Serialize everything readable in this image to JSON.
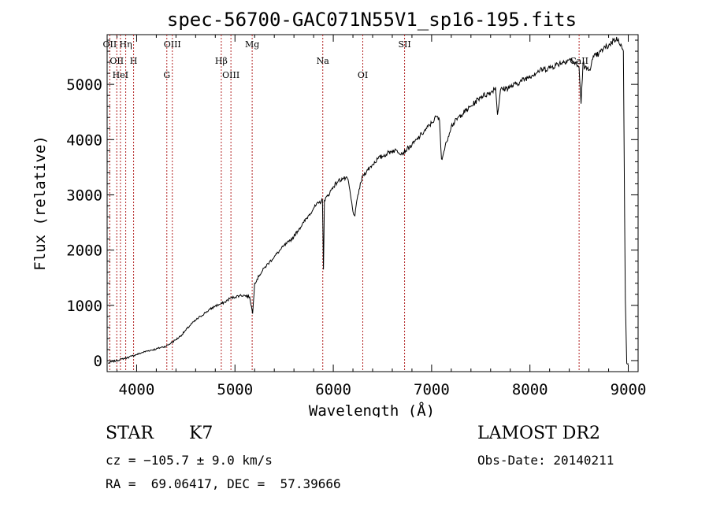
{
  "chart_data": {
    "type": "line",
    "title": "spec-56700-GAC071N55V1_sp16-195.fits",
    "xlabel": "Wavelength (Å)",
    "ylabel": "Flux (relative)",
    "xlim": [
      3700,
      9100
    ],
    "ylim": [
      -200,
      5900
    ],
    "xticks": [
      4000,
      5000,
      6000,
      7000,
      8000,
      9000
    ],
    "xtick_labels": [
      "4000",
      "5000",
      "6000",
      "7000",
      "8000",
      "9000"
    ],
    "yticks": [
      0,
      1000,
      2000,
      3000,
      4000,
      5000
    ],
    "ytick_labels": [
      "0",
      "1000",
      "2000",
      "3000",
      "4000",
      "5000"
    ],
    "line_color": "#000000",
    "marker_color": "#b22222",
    "series": [
      {
        "x": [
          3710,
          3750,
          3800,
          3850,
          3900,
          3950,
          4000,
          4050,
          4100,
          4150,
          4200,
          4250,
          4300,
          4350,
          4400,
          4450,
          4500,
          4550,
          4600,
          4650,
          4700,
          4750,
          4800,
          4850,
          4900,
          4950,
          5000,
          5050,
          5100,
          5150,
          5180,
          5200,
          5250,
          5300,
          5350,
          5400,
          5450,
          5500,
          5550,
          5600,
          5650,
          5700,
          5750,
          5800,
          5850,
          5890,
          5900,
          5910,
          5950,
          6000,
          6050,
          6100,
          6150,
          6200,
          6220,
          6250,
          6300,
          6350,
          6400,
          6450,
          6500,
          6550,
          6600,
          6650,
          6700,
          6750,
          6800,
          6850,
          6900,
          6950,
          7000,
          7050,
          7080,
          7100,
          7120,
          7150,
          7200,
          7300,
          7400,
          7500,
          7600,
          7650,
          7670,
          7700,
          7800,
          7900,
          8000,
          8100,
          8200,
          8300,
          8400,
          8450,
          8500,
          8520,
          8540,
          8560,
          8600,
          8650,
          8700,
          8750,
          8800,
          8850,
          8900,
          8950,
          8970,
          8985,
          9000
        ],
        "y": [
          -50,
          -20,
          0,
          30,
          50,
          80,
          110,
          140,
          170,
          190,
          210,
          240,
          260,
          320,
          380,
          450,
          550,
          650,
          730,
          800,
          870,
          930,
          990,
          1020,
          1060,
          1130,
          1150,
          1180,
          1180,
          1150,
          850,
          1400,
          1550,
          1680,
          1780,
          1880,
          1980,
          2080,
          2150,
          2250,
          2380,
          2500,
          2630,
          2760,
          2850,
          2900,
          1650,
          2900,
          3000,
          3150,
          3250,
          3300,
          3280,
          2700,
          2620,
          3000,
          3350,
          3450,
          3550,
          3650,
          3700,
          3750,
          3800,
          3800,
          3750,
          3830,
          3900,
          4000,
          4100,
          4200,
          4300,
          4420,
          4350,
          3650,
          3750,
          3950,
          4250,
          4450,
          4600,
          4780,
          4850,
          4950,
          4450,
          4900,
          4950,
          5050,
          5150,
          5250,
          5300,
          5380,
          5450,
          5400,
          5300,
          4650,
          5400,
          5300,
          5250,
          5500,
          5550,
          5650,
          5700,
          5800,
          5820,
          5600,
          1100,
          -50,
          -50
        ]
      }
    ],
    "line_markers": [
      {
        "x": 3727,
        "label": "OII"
      },
      {
        "x": 3798,
        "label": "OII"
      },
      {
        "x": 3835,
        "label": "HeI"
      },
      {
        "x": 3889,
        "label": "Hη"
      },
      {
        "x": 3969,
        "label": "H"
      },
      {
        "x": 4307,
        "label": "G"
      },
      {
        "x": 4363,
        "label": "OIII"
      },
      {
        "x": 4861,
        "label": "Hβ"
      },
      {
        "x": 4959,
        "label": "OIII"
      },
      {
        "x": 5175,
        "label": "Mg"
      },
      {
        "x": 5893,
        "label": "Na"
      },
      {
        "x": 6300,
        "label": "OI"
      },
      {
        "x": 6725,
        "label": "SII"
      },
      {
        "x": 8500,
        "label": "CaII"
      }
    ]
  },
  "info": {
    "object_class": "STAR",
    "subclass": "K7",
    "survey": "LAMOST DR2",
    "cz": "cz = −105.7 ± 9.0 km/s",
    "obs_date": "Obs-Date: 20140211",
    "coords": "RA =  69.06417, DEC =  57.39666"
  }
}
